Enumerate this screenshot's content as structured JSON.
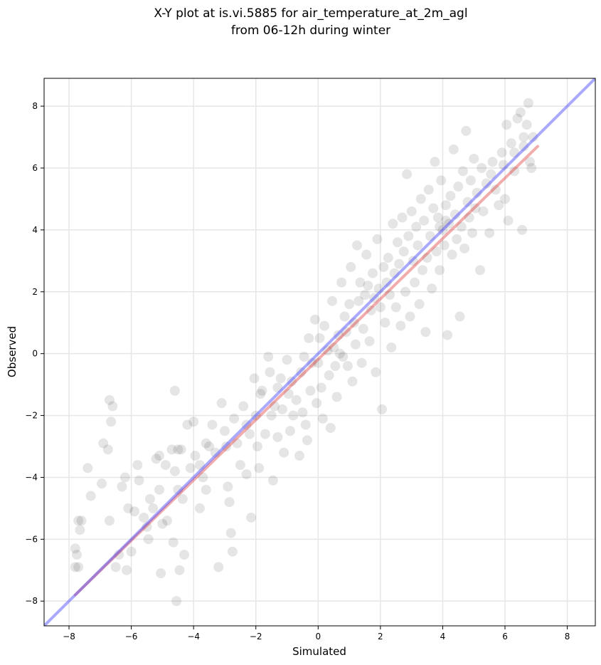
{
  "chart_data": {
    "type": "scatter",
    "title_line1": "X-Y plot at is.vi.5885 for air_temperature_at_2m_agl",
    "title_line2": "from 06-12h during winter",
    "xlabel": "Simulated",
    "ylabel": "Observed",
    "xlim": [
      -8.8,
      8.9
    ],
    "ylim": [
      -8.8,
      8.9
    ],
    "xticks": [
      -8,
      -6,
      -4,
      -2,
      0,
      2,
      4,
      6,
      8
    ],
    "yticks": [
      -8,
      -6,
      -4,
      -2,
      0,
      2,
      4,
      6,
      8
    ],
    "xtick_labels": [
      "−8",
      "−6",
      "−4",
      "−2",
      "0",
      "2",
      "4",
      "6",
      "8"
    ],
    "ytick_labels": [
      "−8",
      "−6",
      "−4",
      "−2",
      "0",
      "2",
      "4",
      "6",
      "8"
    ],
    "grid": true,
    "colors": {
      "points": "#000000",
      "identity_line": "#4040ff",
      "fit_line": "#e03030",
      "grid": "#e6e6e6"
    },
    "identity_line": {
      "x": [
        -8.8,
        8.9
      ],
      "y": [
        -8.8,
        8.9
      ]
    },
    "fit_line": {
      "x": [
        -7.8,
        7.05
      ],
      "y": [
        -7.8,
        6.7
      ]
    },
    "points": [
      [
        -7.8,
        -6.9
      ],
      [
        -7.7,
        -6.9
      ],
      [
        -7.8,
        -6.3
      ],
      [
        -7.75,
        -6.5
      ],
      [
        -7.7,
        -5.4
      ],
      [
        -7.6,
        -5.4
      ],
      [
        -7.65,
        -5.7
      ],
      [
        -7.4,
        -3.7
      ],
      [
        -7.3,
        -4.6
      ],
      [
        -6.9,
        -2.9
      ],
      [
        -6.95,
        -4.2
      ],
      [
        -6.7,
        -1.5
      ],
      [
        -6.6,
        -1.7
      ],
      [
        -6.65,
        -2.2
      ],
      [
        -6.75,
        -3.1
      ],
      [
        -6.7,
        -5.4
      ],
      [
        -6.5,
        -6.9
      ],
      [
        -6.4,
        -6.5
      ],
      [
        -6.3,
        -4.3
      ],
      [
        -6.2,
        -4.0
      ],
      [
        -6.15,
        -7.0
      ],
      [
        -6.1,
        -5.0
      ],
      [
        -6.0,
        -6.4
      ],
      [
        -5.9,
        -5.1
      ],
      [
        -5.8,
        -3.6
      ],
      [
        -5.75,
        -4.1
      ],
      [
        -5.6,
        -5.3
      ],
      [
        -5.5,
        -5.6
      ],
      [
        -5.45,
        -6.0
      ],
      [
        -5.4,
        -4.7
      ],
      [
        -5.3,
        -5.0
      ],
      [
        -5.2,
        -3.4
      ],
      [
        -5.1,
        -3.3
      ],
      [
        -5.1,
        -4.4
      ],
      [
        -5.0,
        -5.5
      ],
      [
        -5.05,
        -7.1
      ],
      [
        -4.9,
        -3.6
      ],
      [
        -4.85,
        -5.4
      ],
      [
        -4.7,
        -3.1
      ],
      [
        -4.6,
        -3.8
      ],
      [
        -4.5,
        -3.1
      ],
      [
        -4.5,
        -4.4
      ],
      [
        -4.65,
        -6.1
      ],
      [
        -4.4,
        -3.1
      ],
      [
        -4.35,
        -4.7
      ],
      [
        -4.45,
        -7.0
      ],
      [
        -4.55,
        -8.0
      ],
      [
        -4.6,
        -1.2
      ],
      [
        -4.2,
        -2.3
      ],
      [
        -4.1,
        -3.7
      ],
      [
        -4.0,
        -2.2
      ],
      [
        -3.95,
        -3.3
      ],
      [
        -4.3,
        -6.5
      ],
      [
        -3.8,
        -3.6
      ],
      [
        -3.7,
        -4.0
      ],
      [
        -3.8,
        -5.0
      ],
      [
        -3.6,
        -2.9
      ],
      [
        -3.5,
        -3.0
      ],
      [
        -3.6,
        -4.4
      ],
      [
        -3.4,
        -2.3
      ],
      [
        -3.3,
        -3.2
      ],
      [
        -3.2,
        -6.9
      ],
      [
        -3.1,
        -1.6
      ],
      [
        -3.0,
        -2.5
      ],
      [
        -2.95,
        -3.0
      ],
      [
        -2.9,
        -4.3
      ],
      [
        -2.85,
        -4.8
      ],
      [
        -2.8,
        -5.8
      ],
      [
        -2.75,
        -6.4
      ],
      [
        -2.7,
        -2.1
      ],
      [
        -2.6,
        -2.9
      ],
      [
        -2.5,
        -3.6
      ],
      [
        -2.4,
        -1.7
      ],
      [
        -2.3,
        -2.3
      ],
      [
        -2.3,
        -3.9
      ],
      [
        -2.2,
        -2.6
      ],
      [
        -2.15,
        -5.3
      ],
      [
        -2.05,
        -0.8
      ],
      [
        -2.0,
        -2.0
      ],
      [
        -1.95,
        -3.0
      ],
      [
        -1.9,
        -3.7
      ],
      [
        -1.85,
        -1.3
      ],
      [
        -1.8,
        -1.2
      ],
      [
        -1.7,
        -2.6
      ],
      [
        -1.6,
        -0.1
      ],
      [
        -1.55,
        -0.6
      ],
      [
        -1.5,
        -2.0
      ],
      [
        -1.45,
        -4.1
      ],
      [
        -1.4,
        -1.7
      ],
      [
        -1.3,
        -2.7
      ],
      [
        -1.3,
        -1.1
      ],
      [
        -1.2,
        -0.8
      ],
      [
        -1.15,
        -1.8
      ],
      [
        -1.1,
        -3.2
      ],
      [
        -1.0,
        -0.2
      ],
      [
        -0.95,
        -1.3
      ],
      [
        -0.9,
        -2.5
      ],
      [
        -0.85,
        -0.9
      ],
      [
        -0.8,
        -2.0
      ],
      [
        -0.7,
        -1.5
      ],
      [
        -0.6,
        -3.3
      ],
      [
        -0.55,
        -0.6
      ],
      [
        -0.5,
        -1.9
      ],
      [
        -0.45,
        -0.1
      ],
      [
        -0.4,
        -2.3
      ],
      [
        -0.35,
        -2.8
      ],
      [
        -0.3,
        0.5
      ],
      [
        -0.25,
        -1.2
      ],
      [
        -0.2,
        -0.3
      ],
      [
        -0.1,
        1.1
      ],
      [
        -0.05,
        -1.6
      ],
      [
        0.0,
        -0.3
      ],
      [
        0.05,
        0.5
      ],
      [
        0.1,
        -1.1
      ],
      [
        0.15,
        -2.1
      ],
      [
        0.2,
        0.9
      ],
      [
        0.3,
        0.1
      ],
      [
        0.35,
        -0.7
      ],
      [
        0.4,
        -2.4
      ],
      [
        0.45,
        1.7
      ],
      [
        0.5,
        0.2
      ],
      [
        0.55,
        -0.4
      ],
      [
        0.6,
        -1.4
      ],
      [
        0.65,
        0.6
      ],
      [
        0.7,
        0.0
      ],
      [
        0.75,
        2.3
      ],
      [
        0.8,
        -0.1
      ],
      [
        0.85,
        1.2
      ],
      [
        0.9,
        0.7
      ],
      [
        0.95,
        -0.4
      ],
      [
        1.0,
        1.6
      ],
      [
        1.05,
        2.8
      ],
      [
        1.1,
        -0.9
      ],
      [
        1.15,
        1.0
      ],
      [
        1.2,
        0.3
      ],
      [
        1.25,
        3.5
      ],
      [
        1.3,
        1.7
      ],
      [
        1.35,
        2.3
      ],
      [
        1.4,
        -0.3
      ],
      [
        1.45,
        0.8
      ],
      [
        1.5,
        1.9
      ],
      [
        1.55,
        3.2
      ],
      [
        1.6,
        2.2
      ],
      [
        1.65,
        0.4
      ],
      [
        1.7,
        1.4
      ],
      [
        1.75,
        2.6
      ],
      [
        1.8,
        1.8
      ],
      [
        1.85,
        -0.6
      ],
      [
        1.9,
        3.7
      ],
      [
        1.95,
        2.1
      ],
      [
        2.0,
        1.5
      ],
      [
        2.05,
        -1.8
      ],
      [
        2.1,
        2.8
      ],
      [
        2.15,
        1.0
      ],
      [
        2.2,
        2.3
      ],
      [
        2.25,
        3.1
      ],
      [
        2.3,
        1.9
      ],
      [
        2.35,
        0.2
      ],
      [
        2.4,
        4.2
      ],
      [
        2.45,
        2.6
      ],
      [
        2.5,
        1.5
      ],
      [
        2.55,
        3.6
      ],
      [
        2.6,
        2.9
      ],
      [
        2.65,
        0.9
      ],
      [
        2.7,
        4.4
      ],
      [
        2.75,
        3.3
      ],
      [
        2.8,
        2.0
      ],
      [
        2.85,
        5.8
      ],
      [
        2.9,
        3.8
      ],
      [
        2.95,
        1.2
      ],
      [
        3.0,
        4.6
      ],
      [
        3.05,
        3.0
      ],
      [
        3.1,
        2.3
      ],
      [
        3.15,
        4.1
      ],
      [
        3.2,
        3.5
      ],
      [
        3.25,
        1.6
      ],
      [
        3.3,
        5.0
      ],
      [
        3.35,
        2.7
      ],
      [
        3.4,
        4.3
      ],
      [
        3.45,
        0.7
      ],
      [
        3.5,
        3.1
      ],
      [
        3.55,
        5.3
      ],
      [
        3.6,
        3.8
      ],
      [
        3.65,
        2.1
      ],
      [
        3.7,
        4.7
      ],
      [
        3.75,
        6.2
      ],
      [
        3.8,
        3.3
      ],
      [
        3.85,
        4.4
      ],
      [
        3.9,
        2.7
      ],
      [
        3.95,
        5.6
      ],
      [
        4.0,
        4.0
      ],
      [
        4.05,
        3.5
      ],
      [
        4.1,
        4.8
      ],
      [
        4.15,
        0.6
      ],
      [
        4.2,
        4.2
      ],
      [
        4.25,
        5.1
      ],
      [
        4.3,
        3.2
      ],
      [
        4.35,
        6.6
      ],
      [
        4.4,
        4.5
      ],
      [
        4.45,
        3.7
      ],
      [
        4.5,
        5.4
      ],
      [
        4.55,
        1.2
      ],
      [
        4.6,
        4.1
      ],
      [
        4.65,
        5.9
      ],
      [
        4.7,
        3.4
      ],
      [
        4.75,
        7.2
      ],
      [
        4.8,
        4.9
      ],
      [
        4.85,
        4.4
      ],
      [
        4.9,
        5.6
      ],
      [
        4.95,
        3.9
      ],
      [
        5.0,
        6.3
      ],
      [
        5.05,
        4.7
      ],
      [
        5.1,
        5.2
      ],
      [
        5.2,
        2.7
      ],
      [
        5.25,
        6.0
      ],
      [
        5.3,
        4.6
      ],
      [
        5.4,
        5.5
      ],
      [
        5.5,
        3.9
      ],
      [
        5.6,
        6.2
      ],
      [
        5.7,
        5.3
      ],
      [
        5.8,
        4.8
      ],
      [
        5.9,
        6.5
      ],
      [
        6.0,
        5.0
      ],
      [
        6.05,
        7.4
      ],
      [
        6.1,
        4.3
      ],
      [
        6.2,
        6.8
      ],
      [
        6.3,
        5.9
      ],
      [
        6.4,
        7.6
      ],
      [
        6.5,
        7.8
      ],
      [
        6.55,
        4.0
      ],
      [
        6.6,
        6.7
      ],
      [
        6.7,
        7.4
      ],
      [
        6.75,
        8.1
      ],
      [
        6.8,
        6.2
      ],
      [
        6.9,
        7.0
      ],
      [
        6.85,
        6.0
      ],
      [
        6.6,
        7.0
      ],
      [
        6.3,
        6.5
      ],
      [
        5.95,
        6.1
      ],
      [
        5.55,
        5.8
      ],
      [
        4.1,
        4.3
      ],
      [
        3.9,
        4.1
      ]
    ]
  }
}
